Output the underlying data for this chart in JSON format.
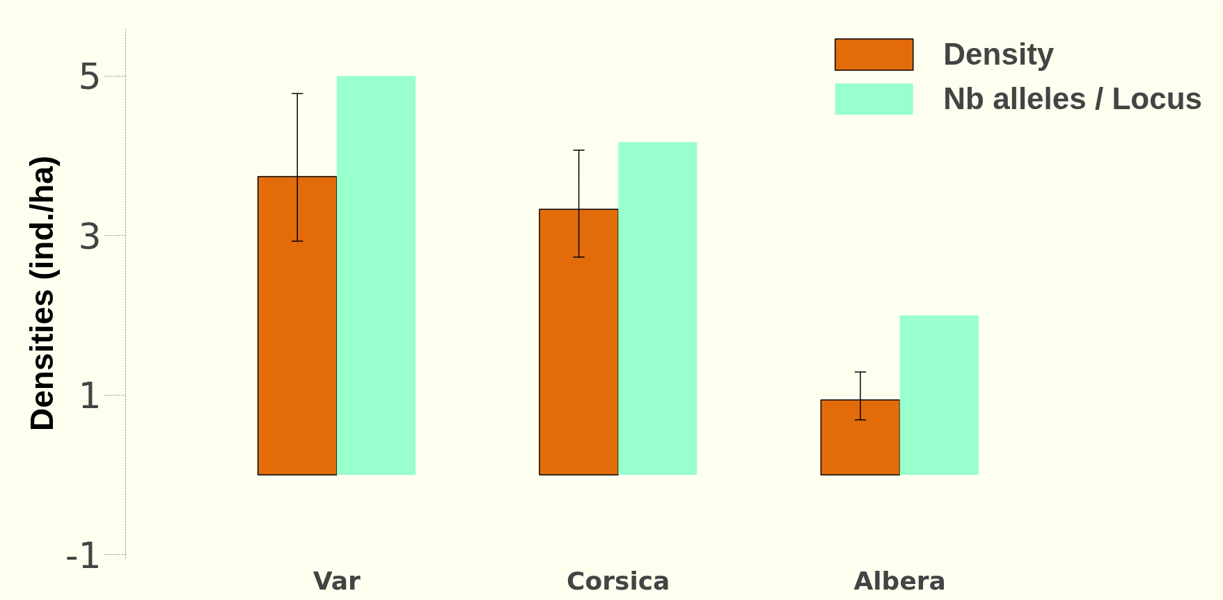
{
  "chart_data": {
    "type": "bar",
    "ylabel": "Densities (ind./ha)",
    "categories": [
      "Var",
      "Corsica",
      "Albera"
    ],
    "series": [
      {
        "name": "Density",
        "color": "#e36c0a",
        "values": [
          3.74,
          3.33,
          0.94
        ],
        "errors": [
          [
            2.93,
            4.78
          ],
          [
            2.73,
            4.07
          ],
          [
            0.69,
            1.29
          ]
        ]
      },
      {
        "name": "Nb alleles / Locus",
        "color": "#99ffcc",
        "values": [
          5.0,
          4.17,
          2.0
        ]
      }
    ],
    "ylim": [
      -1.05,
      5.6
    ],
    "yticks": [
      -1,
      1,
      3,
      5
    ],
    "grid": false,
    "legend": "top right"
  }
}
